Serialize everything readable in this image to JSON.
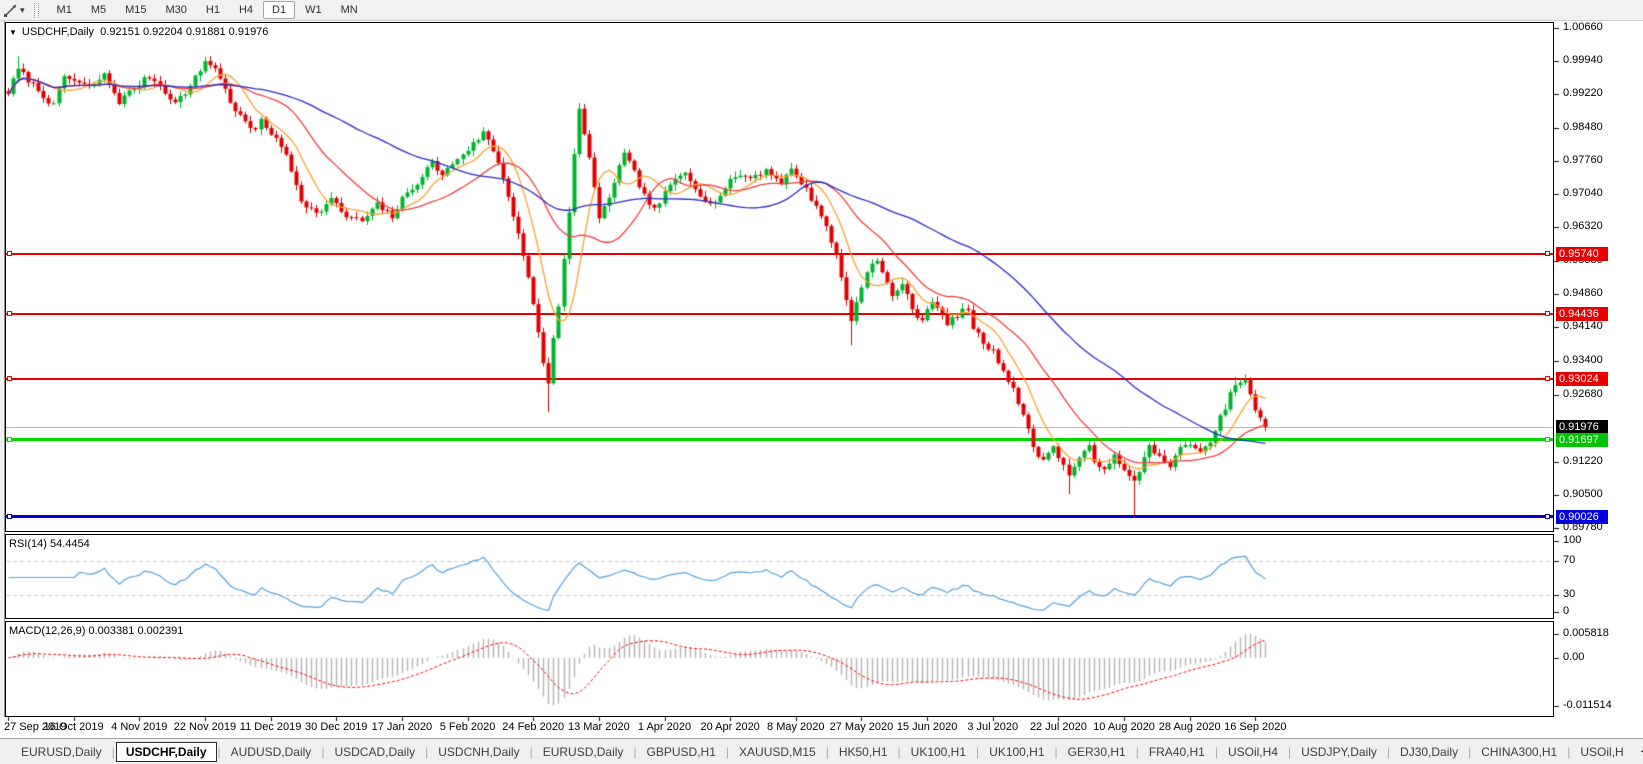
{
  "toolbar": {
    "tool_icon": "line-tool",
    "dropdown_glyph": "▾",
    "timeframes": [
      "M1",
      "M5",
      "M15",
      "M30",
      "H1",
      "H4",
      "D1",
      "W1",
      "MN"
    ],
    "active_timeframe": "D1"
  },
  "chart": {
    "collapse_glyph": "▼",
    "title": "USDCHF,Daily",
    "ohlc": {
      "open": "0.92151",
      "high": "0.92204",
      "low": "0.91881",
      "close": "0.91976"
    }
  },
  "indicators": {
    "rsi": {
      "label": "RSI(14)",
      "value": "54.4454",
      "axis": [
        "100",
        "70",
        "30",
        "0"
      ],
      "level_high": 70,
      "level_low": 30,
      "line_color": "#55a0dd"
    },
    "macd": {
      "label": "MACD(12,26,9)",
      "value_main": "0.003381",
      "value_signal": "0.002391",
      "axis": [
        "0.005818",
        "0.00",
        "-0.011514"
      ],
      "hist_color": "#b4b4b4",
      "signal_color": "#ff0000"
    }
  },
  "chart_data": {
    "type": "candlestick",
    "symbol": "USDCHF",
    "timeframe": "Daily",
    "candle_count": 250,
    "candle_up_color": "#00b42c",
    "candle_down_color": "#e00000",
    "moving_averages": [
      {
        "period": 8,
        "color": "#ffa030"
      },
      {
        "period": 20,
        "color": "#f04040"
      },
      {
        "period": 50,
        "color": "#2a2ac8"
      }
    ],
    "y_ticks": [
      "1.00660",
      "0.99940",
      "0.99220",
      "0.98480",
      "0.97760",
      "0.97040",
      "0.96320",
      "0.95580",
      "0.94860",
      "0.94140",
      "0.93400",
      "0.92680",
      "0.91220",
      "0.90500",
      "0.89780"
    ],
    "x_labels": [
      "27 Sep 2019",
      "16 Oct 2019",
      "4 Nov 2019",
      "22 Nov 2019",
      "11 Dec 2019",
      "30 Dec 2019",
      "17 Jan 2020",
      "5 Feb 2020",
      "24 Feb 2020",
      "13 Mar 2020",
      "1 Apr 2020",
      "20 Apr 2020",
      "8 May 2020",
      "27 May 2020",
      "15 Jun 2020",
      "3 Jul 2020",
      "22 Jul 2020",
      "10 Aug 2020",
      "28 Aug 2020",
      "16 Sep 2020"
    ],
    "hlines": [
      {
        "name": "resistance-line-1",
        "price": "0.95740",
        "color": "#e60000",
        "thickness": 2,
        "handles": true,
        "tag_bg": "#e60000"
      },
      {
        "name": "resistance-line-2",
        "price": "0.94436",
        "color": "#e60000",
        "thickness": 2,
        "handles": true,
        "tag_bg": "#e60000"
      },
      {
        "name": "resistance-line-3",
        "price": "0.93024",
        "color": "#e60000",
        "thickness": 2,
        "handles": true,
        "tag_bg": "#e60000"
      },
      {
        "name": "current-price-line",
        "price": "0.91976",
        "color": "#b6b6b6",
        "thickness": 1,
        "handles": false,
        "tag_bg": "#000000"
      },
      {
        "name": "support-line-green",
        "price": "0.91697",
        "color": "#00d800",
        "thickness": 3,
        "handles": true,
        "tag_bg": "#00c400"
      },
      {
        "name": "support-line-blue",
        "price": "0.90026",
        "color": "#0000dd",
        "thickness": 3,
        "handles": true,
        "tag_bg": "#0000dd"
      }
    ],
    "price_anchors": [
      [
        0,
        0.9925
      ],
      [
        2,
        0.9975
      ],
      [
        6,
        0.993
      ],
      [
        9,
        0.9895
      ],
      [
        11,
        0.996
      ],
      [
        16,
        0.9935
      ],
      [
        19,
        0.9962
      ],
      [
        22,
        0.9905
      ],
      [
        25,
        0.9935
      ],
      [
        28,
        0.996
      ],
      [
        30,
        0.994
      ],
      [
        33,
        0.9902
      ],
      [
        36,
        0.9938
      ],
      [
        39,
        0.9992
      ],
      [
        41,
        0.998
      ],
      [
        44,
        0.9905
      ],
      [
        46,
        0.9872
      ],
      [
        49,
        0.9838
      ],
      [
        50,
        0.9868
      ],
      [
        52,
        0.9836
      ],
      [
        55,
        0.979
      ],
      [
        58,
        0.9692
      ],
      [
        61,
        0.966
      ],
      [
        64,
        0.9692
      ],
      [
        67,
        0.9655
      ],
      [
        70,
        0.9645
      ],
      [
        73,
        0.968
      ],
      [
        76,
        0.9655
      ],
      [
        78,
        0.9692
      ],
      [
        81,
        0.973
      ],
      [
        84,
        0.9772
      ],
      [
        86,
        0.9745
      ],
      [
        89,
        0.9782
      ],
      [
        92,
        0.9812
      ],
      [
        94,
        0.9838
      ],
      [
        95,
        0.982
      ],
      [
        97,
        0.9775
      ],
      [
        99,
        0.97
      ],
      [
        101,
        0.962
      ],
      [
        103,
        0.952
      ],
      [
        104,
        0.946
      ],
      [
        105,
        0.94
      ],
      [
        106,
        0.934
      ],
      [
        107,
        0.929
      ],
      [
        108,
        0.939
      ],
      [
        109,
        0.9465
      ],
      [
        110,
        0.956
      ],
      [
        111,
        0.966
      ],
      [
        112,
        0.979
      ],
      [
        113,
        0.9885
      ],
      [
        114,
        0.984
      ],
      [
        115,
        0.978
      ],
      [
        116,
        0.972
      ],
      [
        117,
        0.9645
      ],
      [
        119,
        0.97
      ],
      [
        121,
        0.9762
      ],
      [
        122,
        0.979
      ],
      [
        124,
        0.975
      ],
      [
        126,
        0.97
      ],
      [
        128,
        0.9668
      ],
      [
        130,
        0.9705
      ],
      [
        132,
        0.9735
      ],
      [
        134,
        0.9752
      ],
      [
        137,
        0.9705
      ],
      [
        139,
        0.968
      ],
      [
        141,
        0.9702
      ],
      [
        144,
        0.9745
      ],
      [
        147,
        0.974
      ],
      [
        150,
        0.9756
      ],
      [
        153,
        0.973
      ],
      [
        155,
        0.9756
      ],
      [
        157,
        0.973
      ],
      [
        161,
        0.966
      ],
      [
        164,
        0.957
      ],
      [
        167,
        0.943
      ],
      [
        170,
        0.954
      ],
      [
        172,
        0.9558
      ],
      [
        175,
        0.9482
      ],
      [
        177,
        0.9512
      ],
      [
        179,
        0.945
      ],
      [
        181,
        0.9432
      ],
      [
        183,
        0.9475
      ],
      [
        186,
        0.942
      ],
      [
        188,
        0.9442
      ],
      [
        190,
        0.9455
      ],
      [
        191,
        0.9412
      ],
      [
        193,
        0.9382
      ],
      [
        195,
        0.936
      ],
      [
        197,
        0.9322
      ],
      [
        199,
        0.9282
      ],
      [
        201,
        0.9222
      ],
      [
        203,
        0.9155
      ],
      [
        205,
        0.9122
      ],
      [
        207,
        0.9162
      ],
      [
        208,
        0.913
      ],
      [
        210,
        0.9095
      ],
      [
        212,
        0.913
      ],
      [
        214,
        0.9152
      ],
      [
        215,
        0.912
      ],
      [
        217,
        0.9112
      ],
      [
        219,
        0.9132
      ],
      [
        221,
        0.91
      ],
      [
        223,
        0.9078
      ],
      [
        225,
        0.913
      ],
      [
        226,
        0.9162
      ],
      [
        228,
        0.913
      ],
      [
        230,
        0.9112
      ],
      [
        232,
        0.915
      ],
      [
        234,
        0.9165
      ],
      [
        236,
        0.914
      ],
      [
        238,
        0.916
      ],
      [
        239,
        0.9192
      ],
      [
        241,
        0.9242
      ],
      [
        243,
        0.9292
      ],
      [
        245,
        0.9295
      ],
      [
        246,
        0.927
      ],
      [
        247,
        0.9232
      ],
      [
        248,
        0.9215
      ],
      [
        249,
        0.91976
      ]
    ],
    "wick_overrides": [
      {
        "i": 2,
        "high": 1.0004
      },
      {
        "i": 39,
        "high": 1.0002
      },
      {
        "i": 107,
        "low": 0.923
      },
      {
        "i": 113,
        "high": 0.9902
      },
      {
        "i": 167,
        "low": 0.9375
      },
      {
        "i": 210,
        "low": 0.9052
      },
      {
        "i": 223,
        "low": 0.9003
      },
      {
        "i": 243,
        "high": 0.9307
      }
    ],
    "last_candle": {
      "o": 0.92151,
      "h": 0.92204,
      "l": 0.91881,
      "c": 0.91976
    }
  },
  "tabs": {
    "scroll_left": "◂",
    "scroll_right": "▸",
    "items": [
      {
        "label": "EURUSD,Daily",
        "active": false
      },
      {
        "label": "USDCHF,Daily",
        "active": true
      },
      {
        "label": "AUDUSD,Daily",
        "active": false
      },
      {
        "label": "USDCAD,Daily",
        "active": false
      },
      {
        "label": "USDCNH,Daily",
        "active": false
      },
      {
        "label": "EURUSD,Daily",
        "active": false
      },
      {
        "label": "GBPUSD,H1",
        "active": false
      },
      {
        "label": "XAUUSD,M15",
        "active": false
      },
      {
        "label": "HK50,H1",
        "active": false
      },
      {
        "label": "UK100,H1",
        "active": false
      },
      {
        "label": "UK100,H1",
        "active": false
      },
      {
        "label": "GER30,H1",
        "active": false
      },
      {
        "label": "FRA40,H1",
        "active": false
      },
      {
        "label": "USOil,H4",
        "active": false
      },
      {
        "label": "USDJPY,Daily",
        "active": false
      },
      {
        "label": "DJ30,Daily",
        "active": false
      },
      {
        "label": "CHINA300,H1",
        "active": false
      },
      {
        "label": "USOil,H",
        "active": false
      }
    ]
  }
}
